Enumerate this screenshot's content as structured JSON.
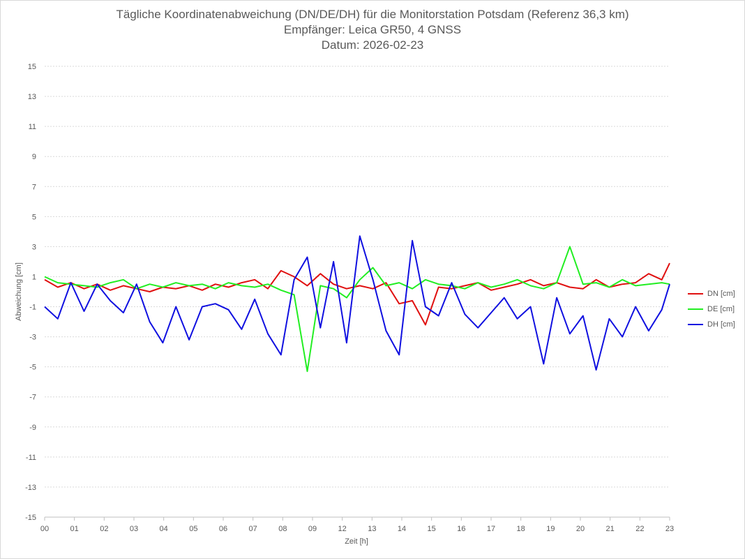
{
  "chart_data": {
    "type": "line",
    "title": "Tägliche Koordinatenabweichung (DN/DE/DH) für die Monitorstation Potsdam (Referenz 36,3 km)",
    "subtitle": "Empfänger: Leica GR50, 4 GNSS",
    "date_label": "Datum: 2026-02-23",
    "xlabel": "Zeit [h]",
    "ylabel": "Abweichung [cm]",
    "ylim": [
      -15,
      15
    ],
    "yticks": [
      "15",
      "13",
      "11",
      "9",
      "7",
      "5",
      "3",
      "1",
      "-1",
      "-3",
      "-5",
      "-7",
      "-9",
      "-11",
      "-13",
      "-15"
    ],
    "xticks": [
      "00",
      "01",
      "02",
      "03",
      "04",
      "05",
      "06",
      "07",
      "08",
      "09",
      "12",
      "13",
      "14",
      "15",
      "16",
      "17",
      "18",
      "19",
      "20",
      "21",
      "22",
      "23"
    ],
    "grid": "horizontal dotted",
    "legend_position": "right",
    "series": [
      {
        "name": "DN [cm]",
        "color": "#e01010",
        "x": [
          0,
          0.5,
          1,
          1.5,
          2,
          2.5,
          3,
          3.5,
          4,
          4.5,
          5,
          5.5,
          6,
          6.5,
          7,
          7.5,
          8,
          8.5,
          9,
          9.5,
          10,
          10.5,
          11,
          11.5,
          12,
          12.5,
          13,
          13.5,
          14,
          14.5,
          15,
          15.5,
          16,
          16.5,
          17,
          17.5,
          18,
          18.5,
          19,
          19.5,
          20,
          20.5,
          21,
          21.5,
          22,
          22.5,
          23,
          23.5,
          23.8
        ],
        "y": [
          0.8,
          0.3,
          0.6,
          0.2,
          0.5,
          0.1,
          0.4,
          0.2,
          0,
          0.3,
          0.2,
          0.4,
          0.1,
          0.5,
          0.3,
          0.6,
          0.8,
          0.2,
          1.4,
          1.0,
          0.4,
          1.2,
          0.5,
          0.2,
          0.4,
          0.2,
          0.6,
          -0.8,
          -0.6,
          -2.2,
          0.3,
          0.2,
          0.4,
          0.6,
          0.1,
          0.3,
          0.5,
          0.8,
          0.4,
          0.6,
          0.3,
          0.2,
          0.8,
          0.3,
          0.5,
          0.6,
          1.2,
          0.8,
          1.9
        ]
      },
      {
        "name": "DE [cm]",
        "color": "#22ee22",
        "x": [
          0,
          0.5,
          1,
          1.5,
          2,
          2.5,
          3,
          3.5,
          4,
          4.5,
          5,
          5.5,
          6,
          6.5,
          7,
          7.5,
          8,
          8.5,
          9,
          9.5,
          10,
          10.5,
          11,
          11.5,
          12,
          12.5,
          13,
          13.5,
          14,
          14.5,
          15,
          15.5,
          16,
          16.5,
          17,
          17.5,
          18,
          18.5,
          19,
          19.5,
          20,
          20.5,
          21,
          21.5,
          22,
          22.5,
          23,
          23.5,
          23.8
        ],
        "y": [
          1.0,
          0.6,
          0.5,
          0.4,
          0.3,
          0.6,
          0.8,
          0.2,
          0.5,
          0.3,
          0.6,
          0.4,
          0.5,
          0.2,
          0.6,
          0.4,
          0.3,
          0.5,
          0.1,
          -0.2,
          -5.3,
          0.4,
          0.2,
          -0.4,
          0.8,
          1.6,
          0.4,
          0.6,
          0.2,
          0.8,
          0.5,
          0.4,
          0.2,
          0.6,
          0.3,
          0.5,
          0.8,
          0.4,
          0.2,
          0.6,
          3.0,
          0.5,
          0.6,
          0.3,
          0.8,
          0.4,
          0.5,
          0.6,
          0.5
        ]
      },
      {
        "name": "DH [cm]",
        "color": "#1010e0",
        "x": [
          0,
          0.5,
          1,
          1.5,
          2,
          2.5,
          3,
          3.5,
          4,
          4.5,
          5,
          5.5,
          6,
          6.5,
          7,
          7.5,
          8,
          8.5,
          9,
          9.5,
          10,
          10.5,
          11,
          11.5,
          12,
          12.5,
          13,
          13.5,
          14,
          14.5,
          15,
          15.5,
          16,
          16.5,
          17,
          17.5,
          18,
          18.5,
          19,
          19.5,
          20,
          20.5,
          21,
          21.5,
          22,
          22.5,
          23,
          23.5,
          23.8
        ],
        "y": [
          -1.0,
          -1.8,
          0.6,
          -1.3,
          0.5,
          -0.6,
          -1.4,
          0.5,
          -2.0,
          -3.4,
          -1.0,
          -3.2,
          -1.0,
          -0.8,
          -1.2,
          -2.5,
          -0.5,
          -2.8,
          -4.2,
          0.8,
          2.3,
          -2.4,
          2.0,
          -3.4,
          3.7,
          0.8,
          -2.6,
          -4.2,
          3.4,
          -1.0,
          -1.6,
          0.6,
          -1.5,
          -2.4,
          -1.4,
          -0.4,
          -1.8,
          -1.0,
          -4.8,
          -0.4,
          -2.8,
          -1.6,
          -5.2,
          -1.8,
          -3.0,
          -1.0,
          -2.6,
          -1.2,
          0.5
        ]
      }
    ]
  }
}
